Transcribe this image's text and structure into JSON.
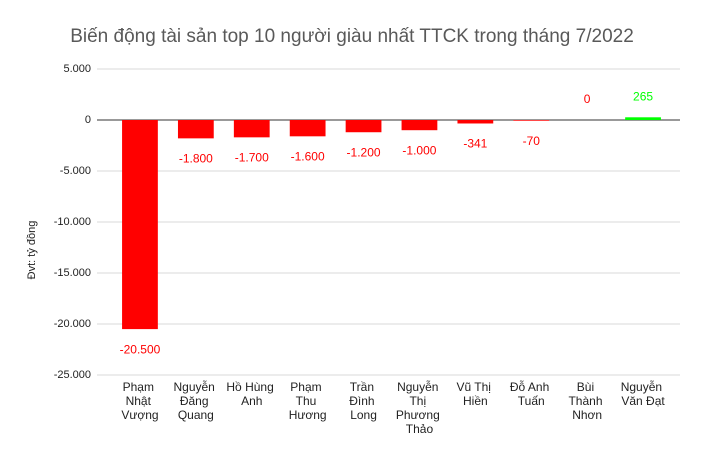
{
  "chart_data": {
    "type": "bar",
    "title": "Biến động tài sản top 10 người giàu nhất TTCK trong tháng 7/2022",
    "y_label": "Đvt: tỷ đồng",
    "categories": [
      "Phạm Nhật Vượng",
      "Nguyễn Đăng Quang",
      "Hồ Hùng Anh",
      "Phạm Thu Hương",
      "Trần Đình Long",
      "Nguyễn Thị Phương Thảo",
      "Vũ Thị Hiền",
      "Đỗ Anh Tuấn",
      "Bùi Thành Nhơn",
      "Nguyễn Văn Đạt"
    ],
    "values": [
      -20500,
      -1800,
      -1700,
      -1600,
      -1200,
      -1000,
      -341,
      -70,
      0,
      265
    ],
    "value_labels": [
      "-20.500",
      "-1.800",
      "-1.700",
      "-1.600",
      "-1.200",
      "-1.000",
      "-341",
      "-70",
      "0",
      "265"
    ],
    "colors": [
      "#ff0000",
      "#ff0000",
      "#ff0000",
      "#ff0000",
      "#ff0000",
      "#ff0000",
      "#ff0000",
      "#ff0000",
      "#ff0000",
      "#00ff00"
    ],
    "ylim": [
      -25000,
      5000
    ],
    "yticks": [
      {
        "value": -25000,
        "label": "-25.000"
      },
      {
        "value": -20000,
        "label": "-20.000"
      },
      {
        "value": -15000,
        "label": "-15.000"
      },
      {
        "value": -10000,
        "label": "-10.000"
      },
      {
        "value": -5000,
        "label": "-5.000"
      },
      0,
      {
        "value": 5000,
        "label": "5.000"
      }
    ],
    "grid": true
  }
}
